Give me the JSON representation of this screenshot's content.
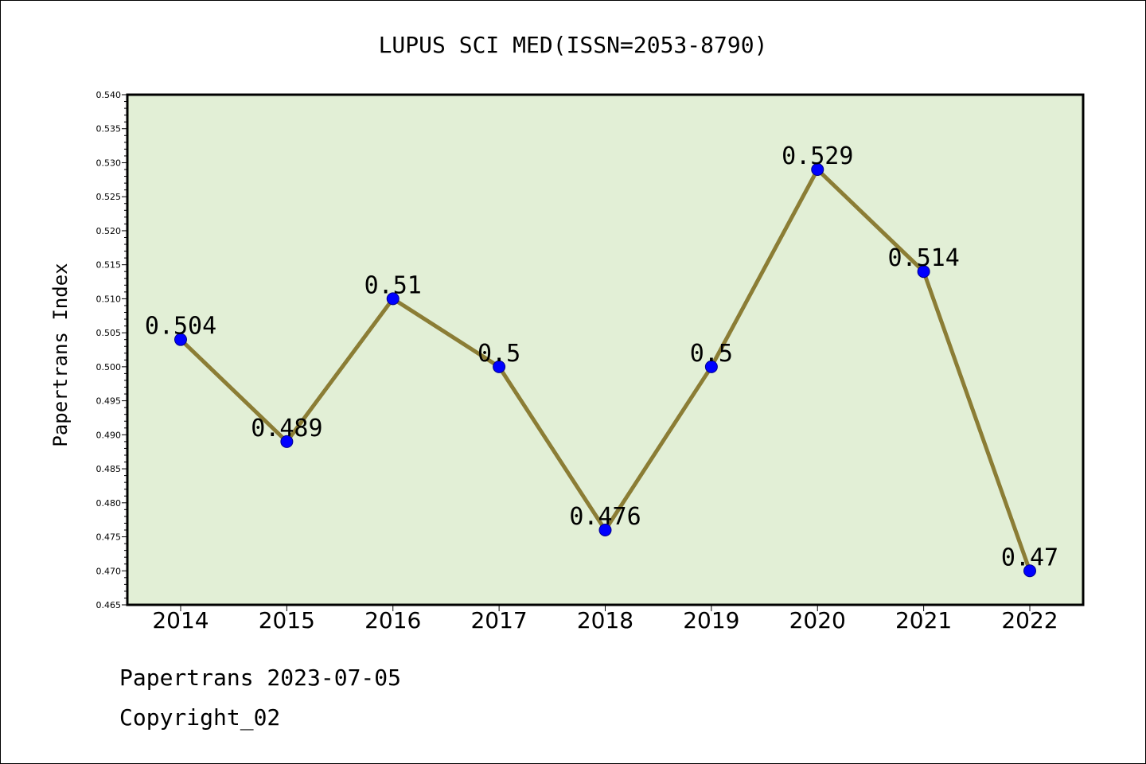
{
  "chart_data": {
    "type": "line",
    "title": "LUPUS SCI MED(ISSN=2053-8790)",
    "xlabel": "",
    "ylabel": "Papertrans Index",
    "categories": [
      "2014",
      "2015",
      "2016",
      "2017",
      "2018",
      "2019",
      "2020",
      "2021",
      "2022"
    ],
    "series": [
      {
        "values": [
          0.504,
          0.489,
          0.51,
          0.5,
          0.476,
          0.5,
          0.529,
          0.514,
          0.47
        ],
        "labels": [
          "0.504",
          "0.489",
          "0.51",
          "0.5",
          "0.476",
          "0.5",
          "0.529",
          "0.514",
          "0.47"
        ]
      }
    ],
    "ylim": [
      0.465,
      0.54
    ],
    "yticks": [
      "0.465",
      "0.470",
      "0.475",
      "0.480",
      "0.485",
      "0.490",
      "0.495",
      "0.500",
      "0.505",
      "0.510",
      "0.515",
      "0.520",
      "0.525",
      "0.530",
      "0.535",
      "0.540"
    ],
    "grid": false,
    "colors": {
      "plot_background": "#e2efd6",
      "line": "#8b7d35",
      "marker": "#0000ff"
    }
  },
  "footer": {
    "line1": "Papertrans 2023-07-05",
    "line2": "Copyright_02"
  }
}
